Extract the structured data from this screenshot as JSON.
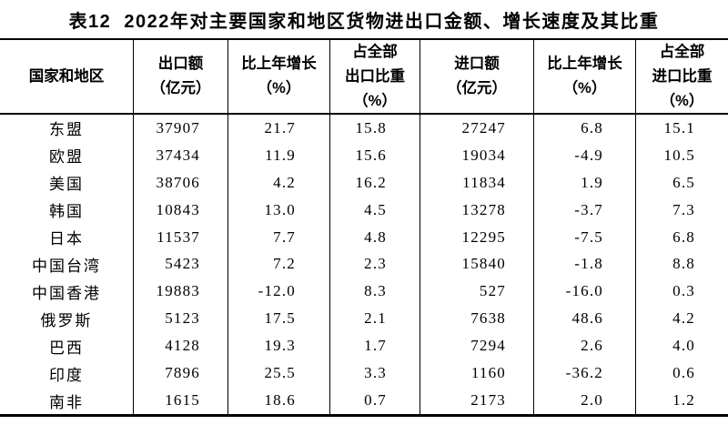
{
  "title": "表12  2022年对主要国家和地区货物进出口金额、增长速度及其比重",
  "colors": {
    "text": "#000000",
    "background": "#ffffff",
    "grid_line": "#000000"
  },
  "table": {
    "columns": [
      {
        "id": "region",
        "lines": [
          "国家和地区"
        ]
      },
      {
        "id": "export-value",
        "lines": [
          "出口额",
          "（亿元）"
        ]
      },
      {
        "id": "export-growth",
        "lines": [
          "比上年增长",
          "（%）"
        ]
      },
      {
        "id": "export-share",
        "lines": [
          "占全部",
          "出口比重",
          "（%）"
        ]
      },
      {
        "id": "import-value",
        "lines": [
          "进口额",
          "（亿元）"
        ]
      },
      {
        "id": "import-growth",
        "lines": [
          "比上年增长",
          "（%）"
        ]
      },
      {
        "id": "import-share",
        "lines": [
          "占全部",
          "进口比重",
          "（%）"
        ]
      }
    ],
    "rows": [
      [
        "东盟",
        "37907",
        "21.7",
        "15.8",
        "27247",
        "6.8",
        "15.1"
      ],
      [
        "欧盟",
        "37434",
        "11.9",
        "15.6",
        "19034",
        "-4.9",
        "10.5"
      ],
      [
        "美国",
        "38706",
        "4.2",
        "16.2",
        "11834",
        "1.9",
        "6.5"
      ],
      [
        "韩国",
        "10843",
        "13.0",
        "4.5",
        "13278",
        "-3.7",
        "7.3"
      ],
      [
        "日本",
        "11537",
        "7.7",
        "4.8",
        "12295",
        "-7.5",
        "6.8"
      ],
      [
        "中国台湾",
        "5423",
        "7.2",
        "2.3",
        "15840",
        "-1.8",
        "8.8"
      ],
      [
        "中国香港",
        "19883",
        "-12.0",
        "8.3",
        "527",
        "-16.0",
        "0.3"
      ],
      [
        "俄罗斯",
        "5123",
        "17.5",
        "2.1",
        "7638",
        "48.6",
        "4.2"
      ],
      [
        "巴西",
        "4128",
        "19.3",
        "1.7",
        "7294",
        "2.6",
        "4.0"
      ],
      [
        "印度",
        "7896",
        "25.5",
        "3.3",
        "1160",
        "-36.2",
        "0.6"
      ],
      [
        "南非",
        "1615",
        "18.6",
        "0.7",
        "2173",
        "2.0",
        "1.2"
      ]
    ]
  }
}
